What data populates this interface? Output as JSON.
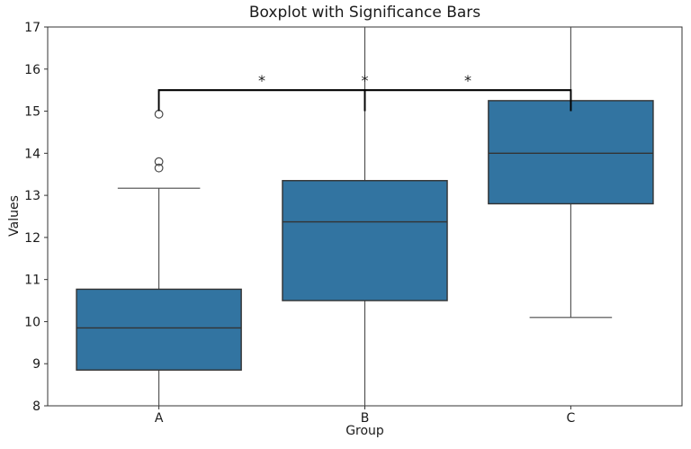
{
  "chart_data": {
    "type": "boxplot",
    "title": "Boxplot with Significance Bars",
    "xlabel": "Group",
    "ylabel": "Values",
    "categories": [
      "A",
      "B",
      "C"
    ],
    "ylim": [
      8,
      17
    ],
    "yticks": [
      8,
      9,
      10,
      11,
      12,
      13,
      14,
      15,
      16,
      17
    ],
    "xlim": [
      0.46,
      3.54
    ],
    "grid": false,
    "legend": false,
    "box_width": 0.8,
    "cap_width": 0.4,
    "colors": {
      "box_fill": "#3274a1",
      "box_edge": "#333333",
      "whisker": "#4a4a4a",
      "spine": "#333333",
      "significance": "#000000",
      "text": "#1a1a1a"
    },
    "boxes": [
      {
        "group": "A",
        "position": 1,
        "whisker_low": 8.0,
        "q1": 8.85,
        "median": 9.85,
        "q3": 10.77,
        "whisker_high": 13.17,
        "caps": {
          "low": false,
          "high": true
        },
        "outliers": [
          13.65,
          13.8,
          14.93
        ]
      },
      {
        "group": "B",
        "position": 2,
        "whisker_low": 8.0,
        "q1": 10.5,
        "median": 12.37,
        "q3": 13.35,
        "whisker_high": 17.0,
        "caps": {
          "low": false,
          "high": false
        },
        "outliers": []
      },
      {
        "group": "C",
        "position": 3,
        "whisker_low": 10.1,
        "q1": 12.8,
        "median": 14.0,
        "q3": 15.25,
        "whisker_high": 17.0,
        "caps": {
          "low": true,
          "high": false
        },
        "outliers": []
      }
    ],
    "significance_bars": [
      {
        "group1": "A",
        "group2": "B",
        "bar_y": 15.5,
        "tick_y": 15.0,
        "label": "*"
      },
      {
        "group1": "A",
        "group2": "C",
        "bar_y": 15.5,
        "tick_y": 15.0,
        "label": "*"
      },
      {
        "group1": "B",
        "group2": "C",
        "bar_y": 15.5,
        "tick_y": 15.0,
        "label": "*"
      }
    ]
  }
}
